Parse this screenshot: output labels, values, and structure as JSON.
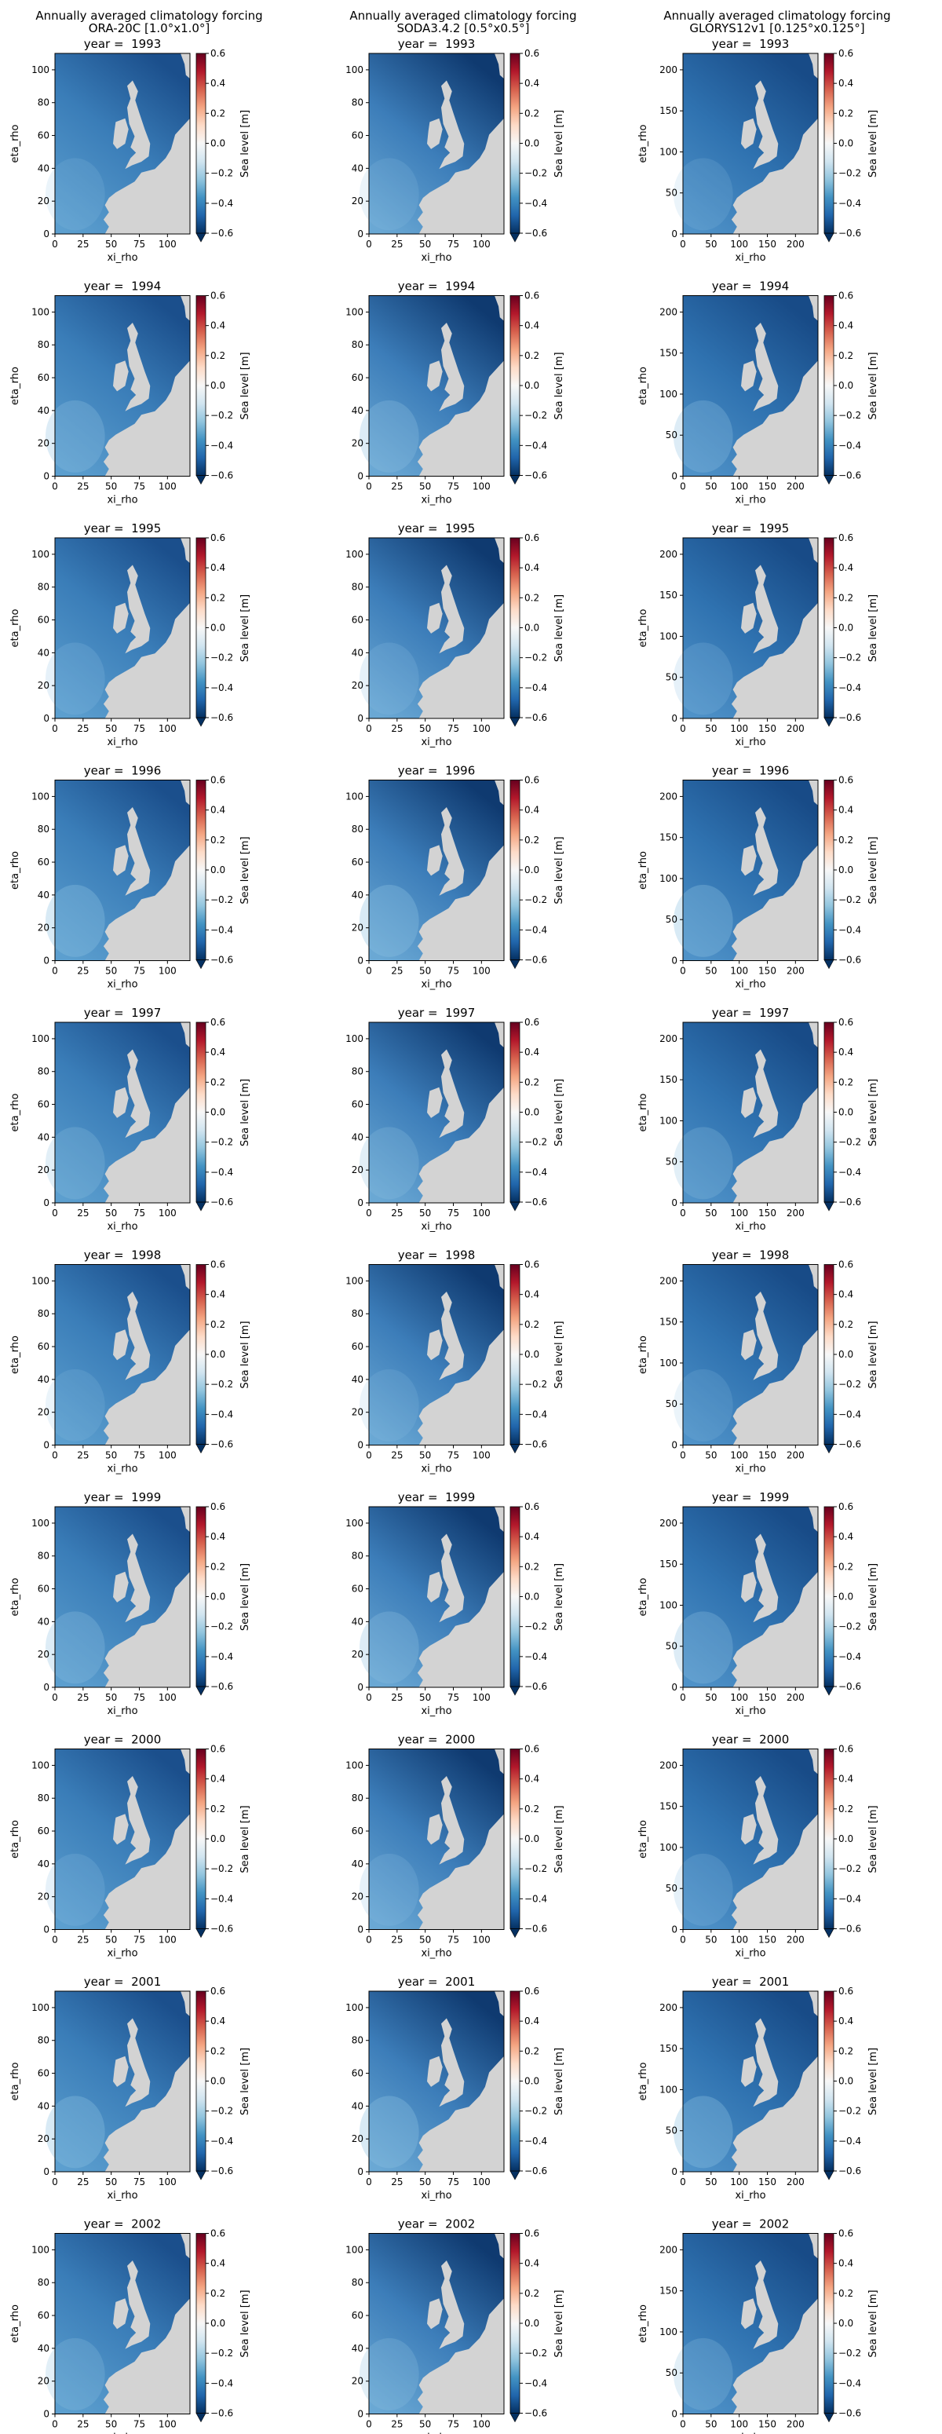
{
  "figure": {
    "title_line": "Annually averaged climatology forcing",
    "panel_title_prefix": "year =  ",
    "xlabel": "xi_rho",
    "ylabel": "eta_rho",
    "colorbar_label": "Sea level [m]",
    "colormap": "RdBu_r",
    "land_color": "#d3d3d3",
    "colorbar_colors": [
      "#053061",
      "#2166ac",
      "#4393c3",
      "#92c5de",
      "#d1e5f0",
      "#f7f7f7",
      "#fddbc7",
      "#f4a582",
      "#d6604d",
      "#b2182b",
      "#67001f"
    ]
  },
  "chart_data": [
    {
      "type": "heatmap",
      "dataset": "ORA-20C [1.0°x1.0°]",
      "years": [
        "1993",
        "1994",
        "1995",
        "1996",
        "1997",
        "1998",
        "1999",
        "2000",
        "2001",
        "2002"
      ],
      "variable": "Sea level [m]",
      "color_range": [
        -0.6,
        0.6
      ],
      "colorbar_ticks": [
        "0.6",
        "0.4",
        "0.2",
        "0.0",
        "−0.2",
        "−0.4",
        "−0.6"
      ],
      "x_ticks": [
        "0",
        "25",
        "50",
        "75",
        "100"
      ],
      "y_ticks": [
        "0",
        "20",
        "40",
        "60",
        "80",
        "100"
      ],
      "xlim": [
        0,
        120
      ],
      "ylim": [
        0,
        110
      ],
      "xlabel": "xi_rho",
      "ylabel": "eta_rho"
    },
    {
      "type": "heatmap",
      "dataset": "SODA3.4.2 [0.5°x0.5°]",
      "years": [
        "1993",
        "1994",
        "1995",
        "1996",
        "1997",
        "1998",
        "1999",
        "2000",
        "2001",
        "2002"
      ],
      "variable": "Sea level [m]",
      "color_range": [
        -0.6,
        0.6
      ],
      "colorbar_ticks": [
        "0.6",
        "0.4",
        "0.2",
        "0.0",
        "−0.2",
        "−0.4",
        "−0.6"
      ],
      "x_ticks": [
        "0",
        "25",
        "50",
        "75",
        "100"
      ],
      "y_ticks": [
        "0",
        "20",
        "40",
        "60",
        "80",
        "100"
      ],
      "xlim": [
        0,
        120
      ],
      "ylim": [
        0,
        110
      ],
      "xlabel": "xi_rho",
      "ylabel": ""
    },
    {
      "type": "heatmap",
      "dataset": "GLORYS12v1 [0.125°x0.125°]",
      "years": [
        "1993",
        "1994",
        "1995",
        "1996",
        "1997",
        "1998",
        "1999",
        "2000",
        "2001",
        "2002"
      ],
      "variable": "Sea level [m]",
      "color_range": [
        -0.6,
        0.6
      ],
      "colorbar_ticks": [
        "0.6",
        "0.4",
        "0.2",
        "0.0",
        "−0.2",
        "−0.4",
        "−0.6"
      ],
      "x_ticks": [
        "0",
        "50",
        "100",
        "150",
        "200"
      ],
      "y_ticks": [
        "0",
        "50",
        "100",
        "150",
        "200"
      ],
      "xlim": [
        0,
        240
      ],
      "ylim": [
        0,
        220
      ],
      "xlabel": "xi_rho",
      "ylabel": "eta_rho"
    }
  ]
}
